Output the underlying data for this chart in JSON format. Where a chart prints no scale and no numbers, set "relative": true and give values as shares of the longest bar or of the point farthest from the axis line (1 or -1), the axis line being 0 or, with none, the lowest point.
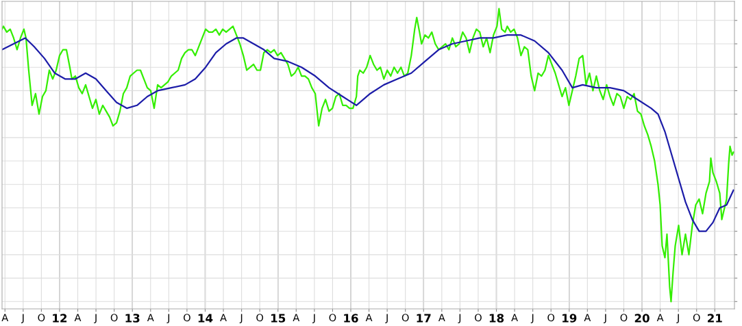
{
  "chart_data": {
    "type": "line",
    "relative": true,
    "grid": true,
    "tick_labels": "x",
    "marker": "none",
    "line_style": "solid",
    "xlim": [
      2011.21,
      2021.27
    ],
    "xticks": [
      {
        "value": 2011.25,
        "label": "A"
      },
      {
        "value": 2011.5,
        "label": "J"
      },
      {
        "value": 2011.75,
        "label": "O"
      },
      {
        "value": 2012,
        "label": "12"
      },
      {
        "value": 2012.25,
        "label": "A"
      },
      {
        "value": 2012.5,
        "label": "J"
      },
      {
        "value": 2012.75,
        "label": "O"
      },
      {
        "value": 2013,
        "label": "13"
      },
      {
        "value": 2013.25,
        "label": "A"
      },
      {
        "value": 2013.5,
        "label": "J"
      },
      {
        "value": 2013.75,
        "label": "O"
      },
      {
        "value": 2014,
        "label": "14"
      },
      {
        "value": 2014.25,
        "label": "A"
      },
      {
        "value": 2014.5,
        "label": "J"
      },
      {
        "value": 2014.75,
        "label": "O"
      },
      {
        "value": 2015,
        "label": "15"
      },
      {
        "value": 2015.25,
        "label": "A"
      },
      {
        "value": 2015.5,
        "label": "J"
      },
      {
        "value": 2015.75,
        "label": "O"
      },
      {
        "value": 2016,
        "label": "16"
      },
      {
        "value": 2016.25,
        "label": "A"
      },
      {
        "value": 2016.5,
        "label": "J"
      },
      {
        "value": 2016.75,
        "label": "O"
      },
      {
        "value": 2017,
        "label": "17"
      },
      {
        "value": 2017.25,
        "label": "A"
      },
      {
        "value": 2017.5,
        "label": "J"
      },
      {
        "value": 2017.75,
        "label": "O"
      },
      {
        "value": 2018,
        "label": "18"
      },
      {
        "value": 2018.25,
        "label": "A"
      },
      {
        "value": 2018.5,
        "label": "J"
      },
      {
        "value": 2018.75,
        "label": "O"
      },
      {
        "value": 2019,
        "label": "19"
      },
      {
        "value": 2019.25,
        "label": "A"
      },
      {
        "value": 2019.5,
        "label": "J"
      },
      {
        "value": 2019.75,
        "label": "O"
      },
      {
        "value": 2020,
        "label": "20"
      },
      {
        "value": 2020.25,
        "label": "A"
      },
      {
        "value": 2020.5,
        "label": "J"
      },
      {
        "value": 2020.75,
        "label": "O"
      },
      {
        "value": 2021,
        "label": "21"
      }
    ],
    "series": [
      {
        "color": "#33ee00",
        "x": [
          2011.21,
          2011.228,
          2011.275,
          2011.322,
          2011.369,
          2011.416,
          2011.463,
          2011.51,
          2011.539,
          2011.576,
          2011.623,
          2011.67,
          2011.718,
          2011.765,
          2011.812,
          2011.859,
          2011.906,
          2011.953,
          2012.0,
          2012.047,
          2012.094,
          2012.141,
          2012.169,
          2012.217,
          2012.264,
          2012.311,
          2012.358,
          2012.405,
          2012.452,
          2012.499,
          2012.546,
          2012.593,
          2012.64,
          2012.687,
          2012.734,
          2012.782,
          2012.829,
          2012.876,
          2012.923,
          2012.97,
          2013.017,
          2013.064,
          2013.111,
          2013.158,
          2013.205,
          2013.252,
          2013.299,
          2013.347,
          2013.394,
          2013.441,
          2013.488,
          2013.535,
          2013.582,
          2013.629,
          2013.676,
          2013.723,
          2013.77,
          2013.817,
          2013.864,
          2013.911,
          2013.959,
          2014.006,
          2014.053,
          2014.1,
          2014.147,
          2014.194,
          2014.241,
          2014.288,
          2014.335,
          2014.382,
          2014.429,
          2014.476,
          2014.524,
          2014.571,
          2014.618,
          2014.665,
          2014.712,
          2014.759,
          2014.806,
          2014.853,
          2014.9,
          2014.947,
          2014.994,
          2015.041,
          2015.088,
          2015.136,
          2015.183,
          2015.23,
          2015.277,
          2015.324,
          2015.371,
          2015.418,
          2015.465,
          2015.512,
          2015.559,
          2015.606,
          2015.653,
          2015.701,
          2015.748,
          2015.795,
          2015.842,
          2015.889,
          2015.936,
          2015.983,
          2016.03,
          2016.077,
          2016.096,
          2016.124,
          2016.171,
          2016.218,
          2016.266,
          2016.313,
          2016.36,
          2016.407,
          2016.454,
          2016.501,
          2016.548,
          2016.595,
          2016.642,
          2016.689,
          2016.736,
          2016.783,
          2016.831,
          2016.878,
          2016.906,
          2016.944,
          2016.972,
          2017.019,
          2017.066,
          2017.113,
          2017.16,
          2017.207,
          2017.254,
          2017.301,
          2017.348,
          2017.395,
          2017.443,
          2017.49,
          2017.537,
          2017.584,
          2017.631,
          2017.678,
          2017.725,
          2017.772,
          2017.819,
          2017.866,
          2017.913,
          2017.96,
          2018.008,
          2018.036,
          2018.073,
          2018.12,
          2018.149,
          2018.196,
          2018.243,
          2018.29,
          2018.337,
          2018.384,
          2018.431,
          2018.478,
          2018.525,
          2018.573,
          2018.62,
          2018.667,
          2018.714,
          2018.761,
          2018.808,
          2018.855,
          2018.902,
          2018.949,
          2018.996,
          2019.043,
          2019.09,
          2019.137,
          2019.185,
          2019.232,
          2019.279,
          2019.326,
          2019.373,
          2019.42,
          2019.467,
          2019.514,
          2019.561,
          2019.608,
          2019.655,
          2019.702,
          2019.75,
          2019.797,
          2019.844,
          2019.891,
          2019.938,
          2019.985,
          2020.032,
          2020.079,
          2020.126,
          2020.173,
          2020.22,
          2020.249,
          2020.277,
          2020.315,
          2020.343,
          2020.38,
          2020.399,
          2020.427,
          2020.456,
          2020.503,
          2020.55,
          2020.597,
          2020.644,
          2020.691,
          2020.738,
          2020.785,
          2020.832,
          2020.879,
          2020.927,
          2020.945,
          2020.974,
          2021.021,
          2021.068,
          2021.096,
          2021.124,
          2021.162,
          2021.19,
          2021.209,
          2021.237,
          2021.256
        ],
        "values": [
          0.93,
          0.94,
          0.92,
          0.93,
          0.9,
          0.86,
          0.9,
          0.93,
          0.9,
          0.79,
          0.67,
          0.71,
          0.64,
          0.7,
          0.72,
          0.79,
          0.76,
          0.79,
          0.84,
          0.86,
          0.86,
          0.8,
          0.76,
          0.77,
          0.73,
          0.71,
          0.74,
          0.7,
          0.66,
          0.69,
          0.64,
          0.67,
          0.65,
          0.63,
          0.6,
          0.61,
          0.65,
          0.71,
          0.73,
          0.77,
          0.78,
          0.79,
          0.79,
          0.76,
          0.73,
          0.72,
          0.66,
          0.74,
          0.73,
          0.74,
          0.75,
          0.77,
          0.78,
          0.79,
          0.83,
          0.85,
          0.86,
          0.86,
          0.84,
          0.87,
          0.9,
          0.93,
          0.92,
          0.92,
          0.93,
          0.91,
          0.93,
          0.92,
          0.93,
          0.94,
          0.91,
          0.88,
          0.84,
          0.79,
          0.8,
          0.81,
          0.79,
          0.79,
          0.85,
          0.86,
          0.85,
          0.86,
          0.84,
          0.85,
          0.83,
          0.81,
          0.77,
          0.78,
          0.8,
          0.77,
          0.77,
          0.76,
          0.73,
          0.71,
          0.6,
          0.66,
          0.69,
          0.65,
          0.66,
          0.7,
          0.71,
          0.67,
          0.67,
          0.66,
          0.66,
          0.7,
          0.77,
          0.79,
          0.78,
          0.8,
          0.84,
          0.81,
          0.79,
          0.8,
          0.76,
          0.79,
          0.77,
          0.8,
          0.78,
          0.8,
          0.77,
          0.78,
          0.84,
          0.93,
          0.97,
          0.92,
          0.88,
          0.91,
          0.9,
          0.92,
          0.88,
          0.86,
          0.87,
          0.88,
          0.86,
          0.9,
          0.87,
          0.88,
          0.92,
          0.9,
          0.85,
          0.9,
          0.93,
          0.92,
          0.87,
          0.9,
          0.85,
          0.91,
          0.94,
          1.0,
          0.93,
          0.92,
          0.94,
          0.92,
          0.93,
          0.9,
          0.84,
          0.87,
          0.86,
          0.77,
          0.72,
          0.78,
          0.77,
          0.79,
          0.84,
          0.81,
          0.78,
          0.74,
          0.7,
          0.73,
          0.67,
          0.72,
          0.77,
          0.83,
          0.84,
          0.74,
          0.78,
          0.72,
          0.77,
          0.72,
          0.69,
          0.74,
          0.7,
          0.67,
          0.71,
          0.7,
          0.66,
          0.7,
          0.69,
          0.71,
          0.65,
          0.64,
          0.6,
          0.57,
          0.53,
          0.48,
          0.4,
          0.33,
          0.19,
          0.15,
          0.23,
          0.05,
          0.0,
          0.1,
          0.19,
          0.26,
          0.16,
          0.23,
          0.16,
          0.26,
          0.33,
          0.35,
          0.3,
          0.37,
          0.41,
          0.49,
          0.44,
          0.41,
          0.37,
          0.28,
          0.31,
          0.35,
          0.47,
          0.53,
          0.5,
          0.51
        ]
      },
      {
        "color": "#1c1ca8",
        "x": [
          2011.21,
          2011.369,
          2011.529,
          2011.652,
          2011.793,
          2011.934,
          2012.075,
          2012.217,
          2012.358,
          2012.499,
          2012.64,
          2012.782,
          2012.923,
          2013.064,
          2013.205,
          2013.347,
          2013.535,
          2013.723,
          2013.864,
          2014.006,
          2014.147,
          2014.288,
          2014.429,
          2014.524,
          2014.665,
          2014.806,
          2014.947,
          2015.136,
          2015.324,
          2015.512,
          2015.701,
          2015.889,
          2016.077,
          2016.266,
          2016.454,
          2016.642,
          2016.831,
          2017.019,
          2017.207,
          2017.395,
          2017.584,
          2017.772,
          2017.96,
          2018.149,
          2018.337,
          2018.525,
          2018.714,
          2018.902,
          2019.043,
          2019.185,
          2019.373,
          2019.561,
          2019.75,
          2019.938,
          2020.126,
          2020.22,
          2020.315,
          2020.409,
          2020.503,
          2020.597,
          2020.691,
          2020.785,
          2020.879,
          2020.974,
          2021.068,
          2021.162,
          2021.256
        ],
        "values": [
          0.86,
          0.88,
          0.9,
          0.87,
          0.83,
          0.78,
          0.76,
          0.76,
          0.78,
          0.76,
          0.72,
          0.68,
          0.66,
          0.67,
          0.7,
          0.72,
          0.73,
          0.74,
          0.76,
          0.8,
          0.85,
          0.88,
          0.9,
          0.9,
          0.88,
          0.86,
          0.83,
          0.82,
          0.8,
          0.77,
          0.73,
          0.7,
          0.67,
          0.71,
          0.74,
          0.76,
          0.78,
          0.82,
          0.86,
          0.88,
          0.89,
          0.9,
          0.9,
          0.91,
          0.91,
          0.89,
          0.85,
          0.79,
          0.73,
          0.74,
          0.73,
          0.73,
          0.72,
          0.69,
          0.66,
          0.64,
          0.58,
          0.5,
          0.42,
          0.34,
          0.28,
          0.24,
          0.24,
          0.27,
          0.32,
          0.33,
          0.38
        ]
      }
    ]
  }
}
